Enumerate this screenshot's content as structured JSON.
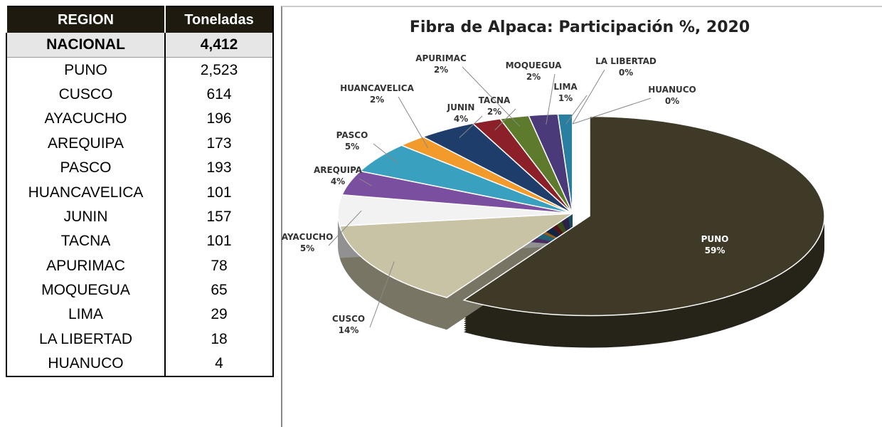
{
  "table": {
    "header": [
      "REGION",
      "Toneladas"
    ],
    "rows": [
      [
        "NACIONAL",
        "4,412"
      ],
      [
        "PUNO",
        "2,523"
      ],
      [
        "CUSCO",
        "614"
      ],
      [
        "AYACUCHO",
        "196"
      ],
      [
        "AREQUIPA",
        "173"
      ],
      [
        "PASCO",
        "193"
      ],
      [
        "HUANCAVELICA",
        "101"
      ],
      [
        "JUNIN",
        "157"
      ],
      [
        "TACNA",
        "101"
      ],
      [
        "APURIMAC",
        "78"
      ],
      [
        "MOQUEGUA",
        "65"
      ],
      [
        "LIMA",
        "29"
      ],
      [
        "LA LIBERTAD",
        "18"
      ],
      [
        "HUANUCO",
        "4"
      ]
    ]
  },
  "chart_data": {
    "type": "pie",
    "title": "Fibra de Alpaca: Participación %, 2020",
    "categories": [
      "PUNO",
      "CUSCO",
      "AYACUCHO",
      "AREQUIPA",
      "PASCO",
      "HUANCAVELICA",
      "JUNIN",
      "TACNA",
      "APURIMAC",
      "MOQUEGUA",
      "LIMA",
      "LA LIBERTAD",
      "HUANUCO"
    ],
    "values": [
      59,
      14,
      5,
      4,
      5,
      2,
      4,
      2,
      2,
      2,
      1,
      0,
      0
    ],
    "value_labels": [
      "59%",
      "14%",
      "5%",
      "4%",
      "5%",
      "2%",
      "4%",
      "2%",
      "2%",
      "2%",
      "1%",
      "0%",
      "0%"
    ],
    "colors": [
      "#3f3a28",
      "#c9c3a6",
      "#f2f2f2",
      "#7a4fa0",
      "#3aa0c0",
      "#f39a2c",
      "#1f3d6b",
      "#8b2028",
      "#5e7a2c",
      "#4a3a7a",
      "#2a7fa0",
      "#e06a10",
      "#2b4f80"
    ]
  }
}
